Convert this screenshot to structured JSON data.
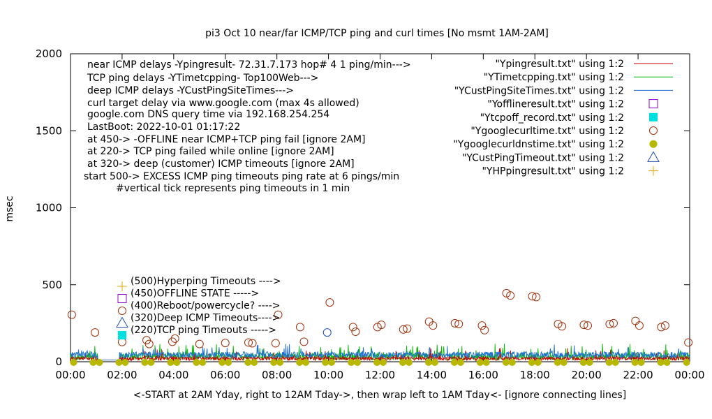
{
  "chart_data": {
    "type": "line",
    "title": "pi3 Oct 10  near/far ICMP/TCP ping and curl times [No msmt 1AM-2AM]",
    "xlabel": "<-START at 2AM Yday, right to 12AM Tday->, then wrap left to 1AM Tday<- [ignore connecting lines]",
    "ylabel": "msec",
    "xlim": [
      0,
      24
    ],
    "ylim": [
      0,
      2000
    ],
    "xticks": [
      "00:00",
      "02:00",
      "04:00",
      "06:00",
      "08:00",
      "10:00",
      "12:00",
      "14:00",
      "16:00",
      "18:00",
      "20:00",
      "22:00",
      "00:00"
    ],
    "yticks": [
      "0",
      "500",
      "1000",
      "1500",
      "2000"
    ],
    "annotations": [
      "near ICMP delays -Ypingresult- 72.31.7.173 hop# 4 1 ping/min--->",
      "TCP ping delays -YTimetcpping- Top100Web--->",
      "deep ICMP delays -YCustPingSiteTimes--->",
      "curl target delay via www.google.com (max 4s allowed)",
      "google.com DNS query time via 192.168.254.254",
      "LastBoot: 2022-10-01 01:17:22",
      "at 450-> -OFFLINE near ICMP+TCP ping fail [ignore 2AM]",
      "at 220-> TCP ping failed while online [ignore 2AM]",
      "at 320-> deep (customer) ICMP timeouts [ignore 2AM]",
      "start 500-> EXCESS ICMP ping timeouts ping rate at 6 pings/min",
      "#vertical tick represents ping timeouts in 1 min"
    ],
    "lower_legend": [
      "(500)Hyperping Timeouts ---->",
      "(450)OFFLINE STATE ----->",
      "(400)Reboot/powercycle? ---->",
      "(320)Deep ICMP Timeouts---->",
      "(220)TCP ping Timeouts ----->"
    ],
    "series": [
      {
        "name": "\"Ypingresult.txt\" using 1:2",
        "color": "#cc0000",
        "style": "line"
      },
      {
        "name": "\"YTimetcpping.txt\" using 1:2",
        "color": "#00bb00",
        "style": "line"
      },
      {
        "name": "\"YCustPingSiteTimes.txt\" using 1:2",
        "color": "#1f6fd1",
        "style": "line"
      },
      {
        "name": "\"Yofflineresult.txt\" using 1:2",
        "color": "#9400d3",
        "style": "open-square"
      },
      {
        "name": "\"Ytcpoff_record.txt\" using 1:2",
        "color": "#00e0e0",
        "style": "filled-square"
      },
      {
        "name": "\"Ygooglecurltime.txt\" using 1:2",
        "color": "#a0300a",
        "style": "open-circle",
        "points": [
          [
            0.05,
            305
          ],
          [
            0.95,
            190
          ],
          [
            2.0,
            128
          ],
          [
            2.95,
            140
          ],
          [
            3.05,
            115
          ],
          [
            3.95,
            130
          ],
          [
            4.05,
            150
          ],
          [
            5.0,
            115
          ],
          [
            6.0,
            122
          ],
          [
            6.9,
            125
          ],
          [
            7.05,
            120
          ],
          [
            7.95,
            120
          ],
          [
            8.05,
            305
          ],
          [
            8.9,
            225
          ],
          [
            9.05,
            130
          ],
          [
            10.05,
            385
          ],
          [
            10.95,
            225
          ],
          [
            11.05,
            195
          ],
          [
            11.9,
            225
          ],
          [
            12.05,
            240
          ],
          [
            12.9,
            210
          ],
          [
            13.05,
            215
          ],
          [
            13.9,
            260
          ],
          [
            14.05,
            235
          ],
          [
            14.9,
            250
          ],
          [
            15.05,
            245
          ],
          [
            15.95,
            235
          ],
          [
            16.05,
            205
          ],
          [
            16.9,
            445
          ],
          [
            17.05,
            430
          ],
          [
            17.9,
            425
          ],
          [
            18.05,
            420
          ],
          [
            18.9,
            245
          ],
          [
            19.05,
            230
          ],
          [
            19.9,
            240
          ],
          [
            20.05,
            235
          ],
          [
            20.9,
            245
          ],
          [
            21.05,
            250
          ],
          [
            21.9,
            265
          ],
          [
            22.05,
            235
          ],
          [
            22.9,
            225
          ],
          [
            23.05,
            235
          ],
          [
            23.95,
            125
          ]
        ]
      },
      {
        "name": "\"Ygooglecurldnstime.txt\" using 1:2",
        "color": "#b8b800",
        "style": "filled-circle"
      },
      {
        "name": "\"YCustPingTimeout.txt\" using 1:2",
        "color": "#1f4fb0",
        "style": "open-triangle",
        "points": [
          [
            9.95,
            190
          ]
        ]
      },
      {
        "name": "\"YHPpingresult.txt\" using 1:2",
        "color": "#e6a800",
        "style": "plus"
      }
    ]
  }
}
